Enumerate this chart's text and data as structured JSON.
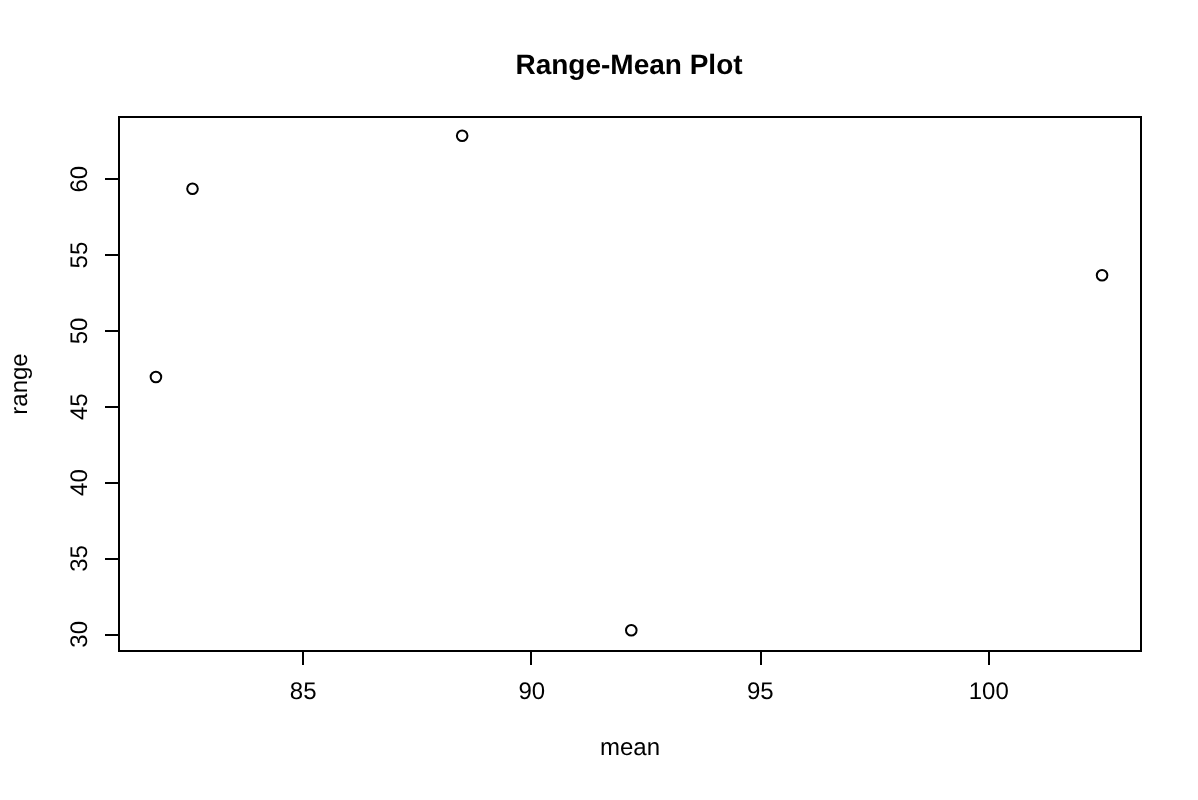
{
  "chart_data": {
    "type": "scatter",
    "title": "Range-Mean Plot",
    "xlabel": "mean",
    "ylabel": "range",
    "x": [
      81.8,
      82.6,
      88.5,
      92.2,
      102.5
    ],
    "values": [
      46.9,
      59.3,
      62.8,
      30.2,
      53.6
    ],
    "color": "#000000",
    "marker": "circle",
    "xlim": [
      80.97,
      103.33
    ],
    "ylim": [
      28.9,
      64.1
    ],
    "xticks": [
      85,
      90,
      95,
      100
    ],
    "yticks": [
      30,
      35,
      40,
      45,
      50,
      55,
      60
    ]
  }
}
